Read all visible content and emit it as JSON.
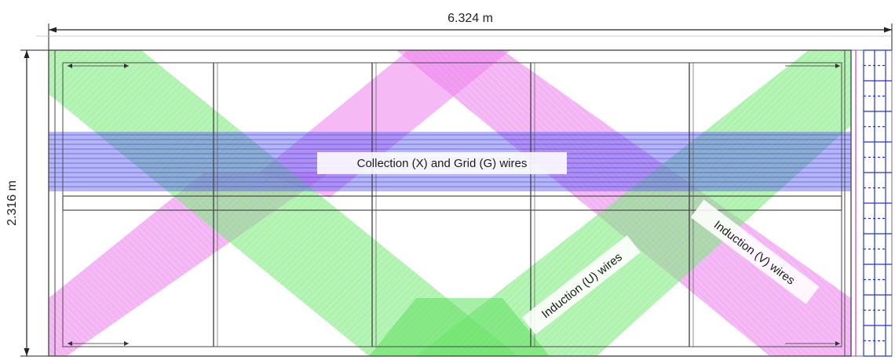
{
  "dimensions": {
    "width_label": "6.324 m",
    "height_label": "2.316 m"
  },
  "labels": {
    "collection": "Collection (X) and Grid (G) wires",
    "induction_u": "Induction (U) wires",
    "induction_v": "Induction (V) wires"
  },
  "colors": {
    "green_band": "#84ec84",
    "magenta_band": "#ec82ec",
    "blue_band": "#5a5aee",
    "frame": "#4a4a4a",
    "dimension_line": "#222222",
    "side_electronics": "#2233dd"
  }
}
